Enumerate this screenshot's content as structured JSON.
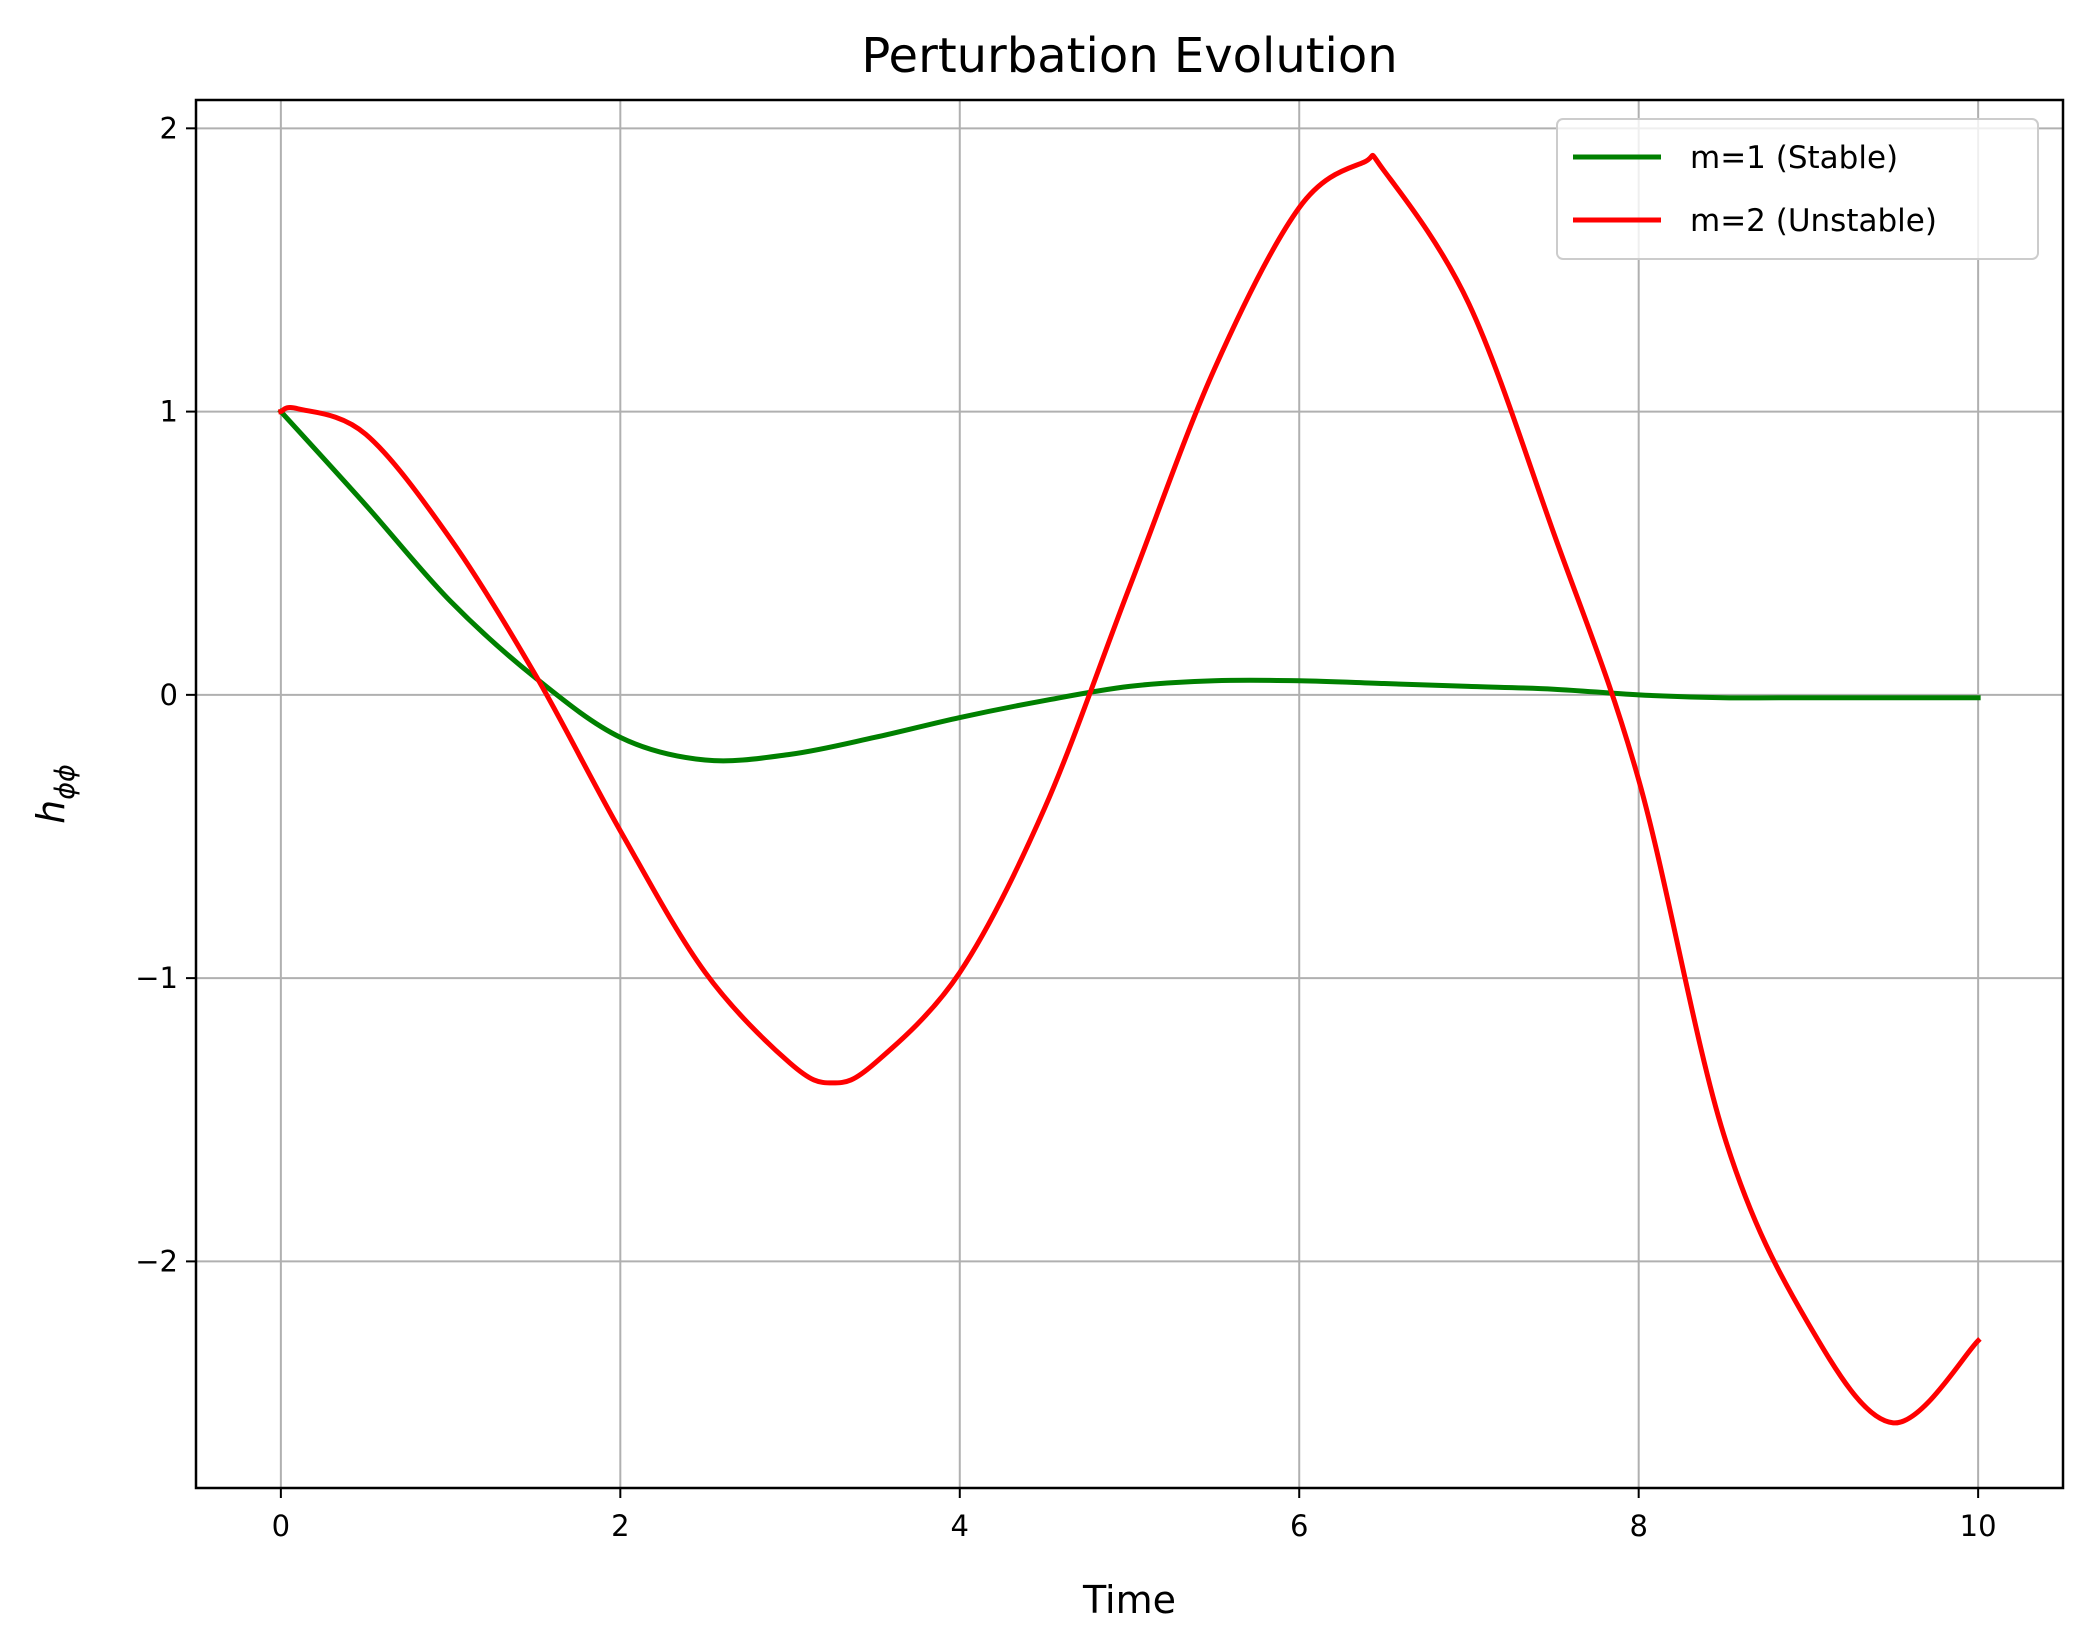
{
  "chart_data": {
    "type": "line",
    "title": "Perturbation Evolution",
    "xlabel": "Time",
    "ylabel": "h",
    "ylabel_subscript": "ϕϕ",
    "xlim": [
      -0.5,
      10.5
    ],
    "ylim": [
      -2.8,
      2.1
    ],
    "x_ticks": [
      0,
      2,
      4,
      6,
      8,
      10
    ],
    "x_tick_labels": [
      "0",
      "2",
      "4",
      "6",
      "8",
      "10"
    ],
    "y_ticks": [
      -2,
      -1,
      0,
      1,
      2
    ],
    "y_tick_labels": [
      "−2",
      "−1",
      "0",
      "1",
      "2"
    ],
    "grid": true,
    "legend_position": "top-right",
    "series": [
      {
        "name": "m=1 (Stable)",
        "color": "#008000",
        "x": [
          0,
          0.5,
          1.0,
          1.5,
          2.0,
          2.5,
          3.0,
          3.5,
          4.0,
          4.5,
          5.0,
          5.5,
          6.0,
          6.5,
          7.0,
          7.5,
          8.0,
          8.5,
          9.0,
          9.5,
          10.0
        ],
        "y": [
          1.0,
          0.67,
          0.33,
          0.06,
          -0.15,
          -0.23,
          -0.21,
          -0.15,
          -0.08,
          -0.02,
          0.03,
          0.05,
          0.05,
          0.04,
          0.03,
          0.02,
          0.0,
          -0.01,
          -0.01,
          -0.01,
          -0.01
        ]
      },
      {
        "name": "m=2 (Unstable)",
        "color": "#ff0000",
        "x": [
          0,
          0.1,
          0.5,
          1.0,
          1.5,
          2.0,
          2.5,
          3.0,
          3.25,
          3.5,
          4.0,
          4.5,
          5.0,
          5.5,
          6.0,
          6.38,
          6.5,
          7.0,
          7.5,
          8.0,
          8.5,
          9.0,
          9.5,
          10.0
        ],
        "y": [
          1.0,
          1.01,
          0.92,
          0.55,
          0.07,
          -0.48,
          -0.98,
          -1.3,
          -1.37,
          -1.3,
          -0.98,
          -0.4,
          0.38,
          1.15,
          1.72,
          1.88,
          1.85,
          1.38,
          0.57,
          -0.3,
          -1.55,
          -2.22,
          -2.57,
          -2.28
        ]
      }
    ]
  }
}
